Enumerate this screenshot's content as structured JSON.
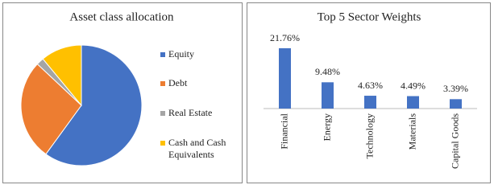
{
  "chart_data": [
    {
      "type": "pie",
      "title": "Asset class allocation",
      "categories": [
        "Equity",
        "Debt",
        "Real Estate",
        "Cash and Cash Equivalents"
      ],
      "values": [
        60,
        27,
        2,
        11
      ],
      "colors": [
        "#4472c4",
        "#ed7d31",
        "#a5a5a5",
        "#ffc000"
      ],
      "legend": "right"
    },
    {
      "type": "bar",
      "title": "Top 5 Sector Weights",
      "categories": [
        "Financial",
        "Energy",
        "Technology",
        "Materials",
        "Capital Goods"
      ],
      "values": [
        21.76,
        9.48,
        4.63,
        4.49,
        3.39
      ],
      "value_labels": [
        "21.76%",
        "9.48%",
        "4.63%",
        "4.49%",
        "3.39%"
      ],
      "color": "#4472c4"
    }
  ]
}
